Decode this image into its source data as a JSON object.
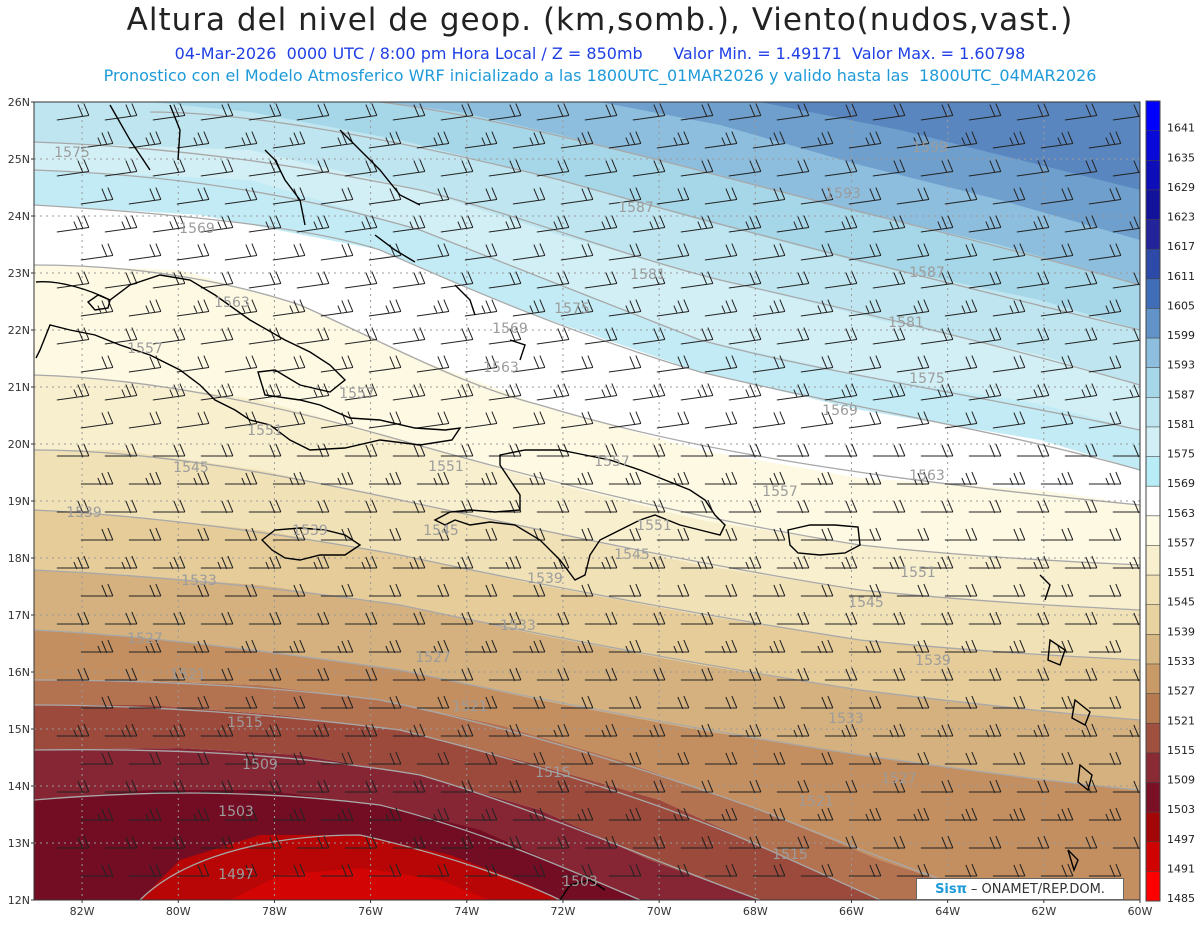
{
  "title": "Altura del nivel de geop. (km,somb.), Viento(nudos,vast.)",
  "subtitle": "04-Mar-2026  0000 UTC / 8:00 pm Hora Local / Z = 850mb      Valor Min. = 1.49171  Valor Max. = 1.60798",
  "subtitle2": "Pronostico con el Modelo Atmosferico WRF inicializado a las 1800UTC_01MAR2026 y valido hasta las  1800UTC_04MAR2026",
  "credit_brand": "Sisπ",
  "credit_text": "– ONAMET/REP.DOM.",
  "colors": {
    "low": "#ff0000",
    "high": "#0000ff",
    "contour": "#a8a8a8",
    "coast": "#000000"
  },
  "map": {
    "lat_labels": [
      "26N",
      "25N",
      "24N",
      "23N",
      "22N",
      "21N",
      "20N",
      "19N",
      "18N",
      "17N",
      "16N",
      "15N",
      "14N",
      "13N",
      "12N"
    ],
    "lon_labels": [
      "82W",
      "80W",
      "78W",
      "76W",
      "74W",
      "72W",
      "70W",
      "68W",
      "66W",
      "64W",
      "62W",
      "60W"
    ]
  },
  "colorbar": {
    "levels": [
      "1641",
      "1635",
      "1629",
      "1623",
      "1617",
      "1611",
      "1605",
      "1599",
      "1593",
      "1587",
      "1581",
      "1575",
      "1569",
      "1563",
      "1557",
      "1551",
      "1545",
      "1539",
      "1533",
      "1527",
      "1521",
      "1515",
      "1509",
      "1503",
      "1497",
      "1491",
      "1485"
    ],
    "colors": [
      "#0000ff",
      "#0a0ad8",
      "#0e0eb8",
      "#12129a",
      "#23239a",
      "#2e4aa8",
      "#3f6db8",
      "#6192c8",
      "#8dbede",
      "#a6d7e8",
      "#bfe6f0",
      "#d2eff5",
      "#b8ecf6",
      "#ffffff",
      "#fdfae6",
      "#f8efcf",
      "#f1e1b6",
      "#e8d29f",
      "#d7b884",
      "#c79a68",
      "#b57a4f",
      "#a0503e",
      "#8a2a34",
      "#7a1026",
      "#a20606",
      "#d00303",
      "#ff0000"
    ]
  },
  "contours": [
    {
      "label": "1599",
      "labels": [
        [
          930,
          152
        ]
      ]
    },
    {
      "label": "1593",
      "labels": [
        [
          843,
          198
        ]
      ]
    },
    {
      "label": "1587",
      "labels": [
        [
          636,
          212
        ],
        [
          927,
          277
        ]
      ]
    },
    {
      "label": "1581",
      "labels": [
        [
          648,
          279
        ],
        [
          906,
          327
        ]
      ]
    },
    {
      "label": "1575",
      "labels": [
        [
          72,
          157
        ],
        [
          572,
          313
        ],
        [
          927,
          383
        ]
      ]
    },
    {
      "label": "1569",
      "labels": [
        [
          197,
          233
        ],
        [
          510,
          333
        ],
        [
          840,
          415
        ]
      ]
    },
    {
      "label": "1563",
      "labels": [
        [
          232,
          307
        ],
        [
          501,
          372
        ],
        [
          927,
          480
        ]
      ]
    },
    {
      "label": "1557",
      "labels": [
        [
          145,
          353
        ],
        [
          357,
          398
        ],
        [
          612,
          466
        ],
        [
          780,
          496
        ]
      ]
    },
    {
      "label": "1551",
      "labels": [
        [
          265,
          435
        ],
        [
          446,
          471
        ],
        [
          654,
          530
        ],
        [
          918,
          577
        ]
      ]
    },
    {
      "label": "1545",
      "labels": [
        [
          191,
          472
        ],
        [
          441,
          535
        ],
        [
          632,
          559
        ],
        [
          866,
          607
        ]
      ]
    },
    {
      "label": "1539",
      "labels": [
        [
          84,
          517
        ],
        [
          310,
          535
        ],
        [
          545,
          583
        ],
        [
          933,
          665
        ]
      ]
    },
    {
      "label": "1533",
      "labels": [
        [
          199,
          585
        ],
        [
          518,
          630
        ],
        [
          846,
          723
        ]
      ]
    },
    {
      "label": "1527",
      "labels": [
        [
          145,
          643
        ],
        [
          433,
          662
        ],
        [
          899,
          783
        ]
      ]
    },
    {
      "label": "1521",
      "labels": [
        [
          188,
          679
        ],
        [
          470,
          711
        ],
        [
          816,
          806
        ]
      ]
    },
    {
      "label": "1515",
      "labels": [
        [
          245,
          727
        ],
        [
          553,
          777
        ],
        [
          790,
          859
        ]
      ]
    },
    {
      "label": "1509",
      "labels": [
        [
          260,
          769
        ]
      ]
    },
    {
      "label": "1503",
      "labels": [
        [
          236,
          816
        ],
        [
          580,
          886
        ]
      ]
    },
    {
      "label": "1497",
      "labels": [
        [
          236,
          879
        ]
      ]
    }
  ]
}
